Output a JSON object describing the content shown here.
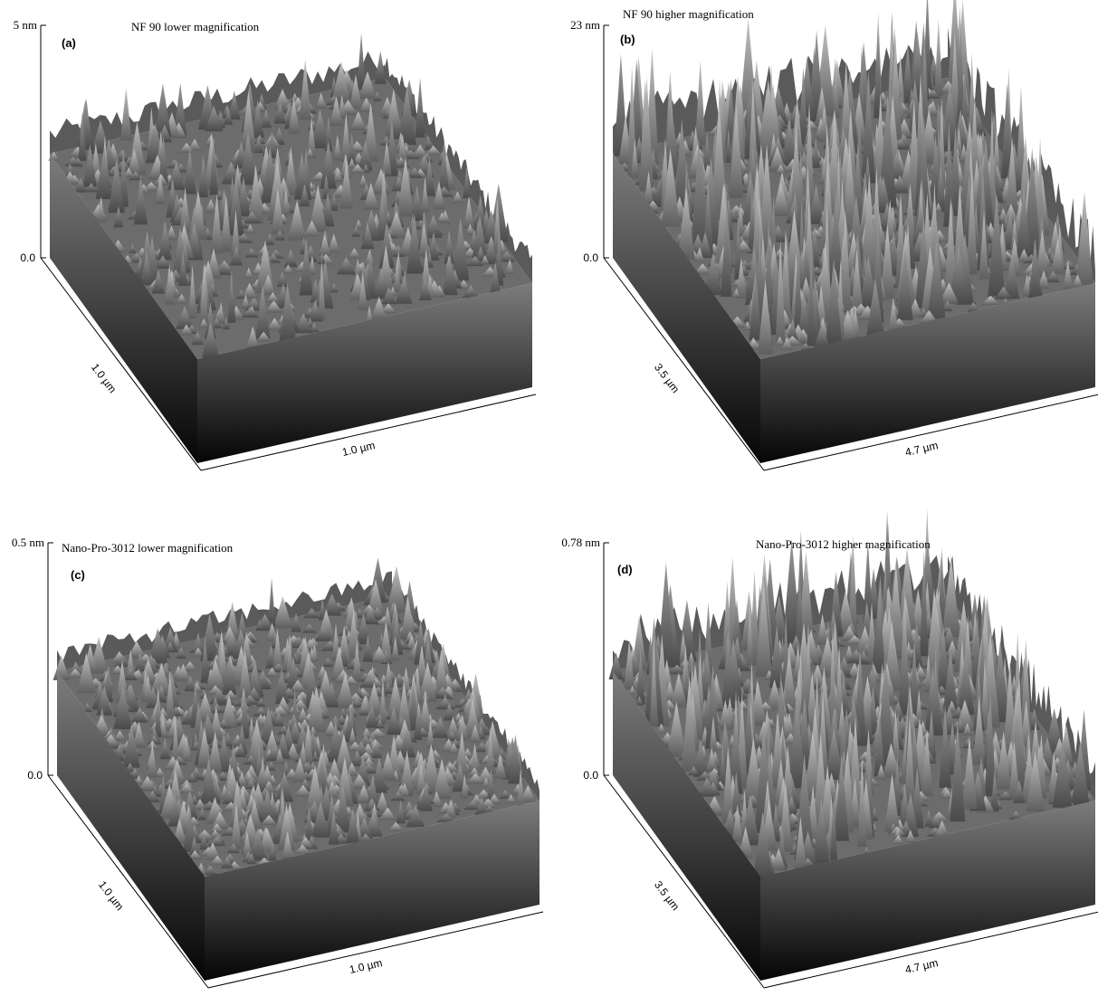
{
  "panels": [
    {
      "label": "(a)",
      "title": "NF 90 lower magnification",
      "z_top": "5 nm",
      "z_bottom": "0.0",
      "depth_axis": "1.0 µm",
      "width_axis": "1.0 µm"
    },
    {
      "label": "(b)",
      "title": "NF 90 higher magnification",
      "z_top": "23 nm",
      "z_bottom": "0.0",
      "depth_axis": "3.5 µm",
      "width_axis": "4.7 µm"
    },
    {
      "label": "(c)",
      "title": "Nano-Pro-3012 lower magnification",
      "z_top": "0.5 nm",
      "z_bottom": "0.0",
      "depth_axis": "1.0 µm",
      "width_axis": "1.0 µm"
    },
    {
      "label": "(d)",
      "title": "Nano-Pro-3012 higher magnification",
      "z_top": "0.78 nm",
      "z_bottom": "0.0",
      "depth_axis": "3.5 µm",
      "width_axis": "4.7 µm"
    }
  ]
}
